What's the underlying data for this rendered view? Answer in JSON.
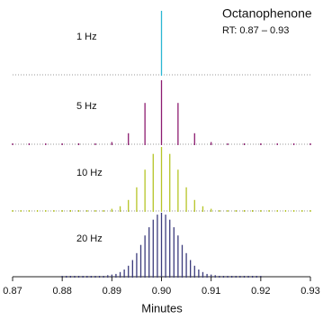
{
  "chart_data": {
    "type": "stem",
    "title": "Octanophenone",
    "subtitle": "RT: 0.87 – 0.93",
    "x_label": "Minutes",
    "xlim": [
      0.87,
      0.93
    ],
    "xticks": [
      0.87,
      0.88,
      0.89,
      {
        "value": 0.9,
        "label": "0.90"
      },
      0.91,
      0.92,
      0.93
    ],
    "ylim": [
      0,
      100
    ],
    "series": [
      {
        "name": "1 Hz",
        "color": "#2bb6d3",
        "x": [
          0.9
        ],
        "values": [
          100
        ]
      },
      {
        "name": "5 Hz",
        "color": "#8c1c70",
        "x": [
          0.87,
          0.87333,
          0.87667,
          0.88,
          0.88333,
          0.88667,
          0.89,
          0.89333,
          0.89667,
          0.9,
          0.90333,
          0.90667,
          0.91,
          0.91333,
          0.91667,
          0.92,
          0.92333,
          0.92667,
          0.93
        ],
        "values": [
          0,
          0,
          0,
          0,
          0,
          0,
          2,
          16,
          64,
          100,
          64,
          16,
          2,
          0,
          0,
          0,
          0,
          0,
          0
        ]
      },
      {
        "name": "10 Hz",
        "color": "#b6c526",
        "x": [
          0.87,
          0.87167,
          0.87333,
          0.875,
          0.87667,
          0.87833,
          0.88,
          0.88167,
          0.88333,
          0.885,
          0.88667,
          0.88833,
          0.89,
          0.89167,
          0.89333,
          0.895,
          0.89667,
          0.89833,
          0.9,
          0.90167,
          0.90333,
          0.905,
          0.90667,
          0.90833,
          0.91,
          0.91167,
          0.91333,
          0.915,
          0.91667,
          0.91833,
          0.92,
          0.92167,
          0.92333,
          0.925,
          0.92667,
          0.92833,
          0.93
        ],
        "values": [
          0,
          0,
          0,
          0,
          0,
          0,
          0,
          0,
          0,
          0,
          0,
          0,
          2,
          6,
          16,
          36,
          64,
          89,
          100,
          89,
          64,
          36,
          16,
          6,
          2,
          0,
          0,
          0,
          0,
          0,
          0,
          0,
          0,
          0,
          0,
          0,
          0
        ]
      },
      {
        "name": "20 Hz",
        "color": "#3b3b7c",
        "x": [
          0.88,
          0.88083,
          0.88167,
          0.8825,
          0.88333,
          0.88417,
          0.885,
          0.88583,
          0.88667,
          0.8875,
          0.88833,
          0.88917,
          0.89,
          0.89083,
          0.89167,
          0.8925,
          0.89333,
          0.89417,
          0.895,
          0.89583,
          0.89667,
          0.8975,
          0.89833,
          0.89917,
          0.9,
          0.90083,
          0.90167,
          0.9025,
          0.90333,
          0.90417,
          0.905,
          0.90583,
          0.90667,
          0.9075,
          0.90833,
          0.90917,
          0.91,
          0.91083,
          0.91167,
          0.9125,
          0.91333,
          0.91417,
          0.915,
          0.91583,
          0.91667,
          0.9175,
          0.91833,
          0.91917,
          0.92
        ],
        "values": [
          0,
          0,
          0,
          0,
          0,
          0,
          0,
          0,
          0,
          0,
          0,
          1,
          2,
          3,
          6,
          10,
          16,
          25,
          36,
          49,
          64,
          77,
          89,
          97,
          100,
          97,
          89,
          77,
          64,
          49,
          36,
          25,
          16,
          10,
          6,
          3,
          2,
          1,
          0,
          0,
          0,
          0,
          0,
          0,
          0,
          0,
          0,
          0,
          0
        ]
      }
    ]
  }
}
